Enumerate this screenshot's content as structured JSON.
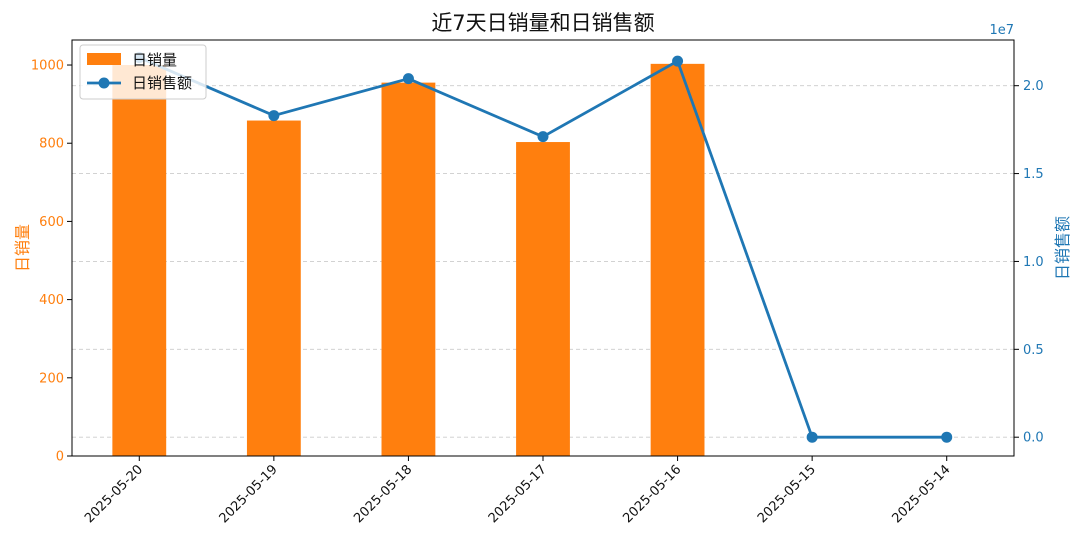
{
  "chart_data": {
    "type": "bar+line",
    "title": "近7天日销量和日销售额",
    "categories": [
      "2025-05-20",
      "2025-05-19",
      "2025-05-18",
      "2025-05-17",
      "2025-05-16",
      "2025-05-15",
      "2025-05-14"
    ],
    "bar_series": {
      "name": "日销量",
      "axis": "left",
      "values": [
        1000,
        858,
        955,
        803,
        1003,
        0,
        0
      ],
      "color": "#ff7f0e"
    },
    "line_series": {
      "name": "日销售额",
      "axis": "right",
      "values": [
        21600000,
        18300000,
        20400000,
        17100000,
        21400000,
        0,
        0
      ],
      "color": "#1f77b4",
      "marker": "circle"
    },
    "left_axis": {
      "label": "日销量",
      "ylim": [
        0,
        1064
      ],
      "ticks": [
        0,
        200,
        400,
        600,
        800,
        1000
      ],
      "color": "#ff7f0e"
    },
    "right_axis": {
      "label": "日销售额",
      "ylim": [
        -1070000,
        22600000
      ],
      "ticks": [
        0,
        5000000,
        10000000,
        15000000,
        20000000
      ],
      "tick_labels": [
        "0.0",
        "0.5",
        "1.0",
        "1.5",
        "2.0"
      ],
      "offset_text": "1e7",
      "color": "#1f77b4"
    },
    "grid": "horizontal dashed",
    "legend_position": "top-left",
    "x_tick_rotation": "45"
  }
}
